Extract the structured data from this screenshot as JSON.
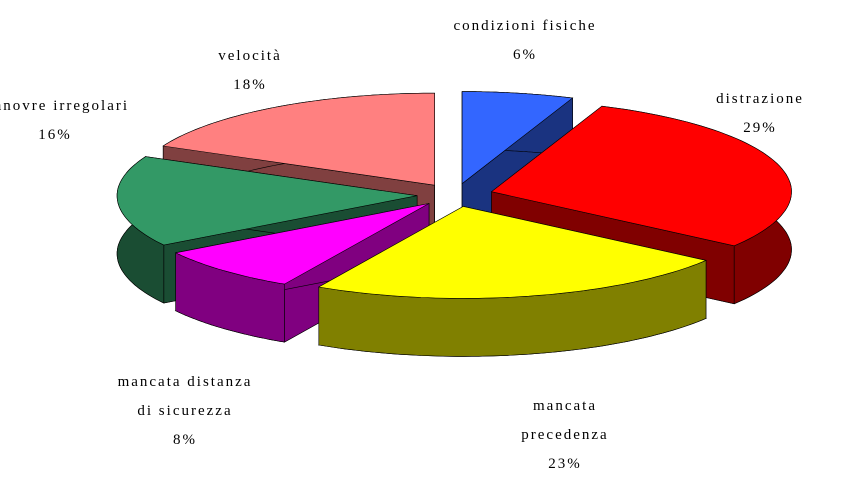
{
  "chart_data": {
    "type": "pie3d",
    "categories": [
      "condizioni fisiche",
      "distrazione",
      "mancata precedenza",
      "mancata distanza di sicurezza",
      "manovre irregolari",
      "velocità"
    ],
    "values": [
      6,
      29,
      23,
      8,
      16,
      18
    ],
    "value_labels": [
      "6%",
      "29%",
      "23%",
      "8%",
      "16%",
      "18%"
    ],
    "colors": [
      "#3366ff",
      "#ff0000",
      "#ffff00",
      "#ff00ff",
      "#339966",
      "#ff8080"
    ]
  }
}
